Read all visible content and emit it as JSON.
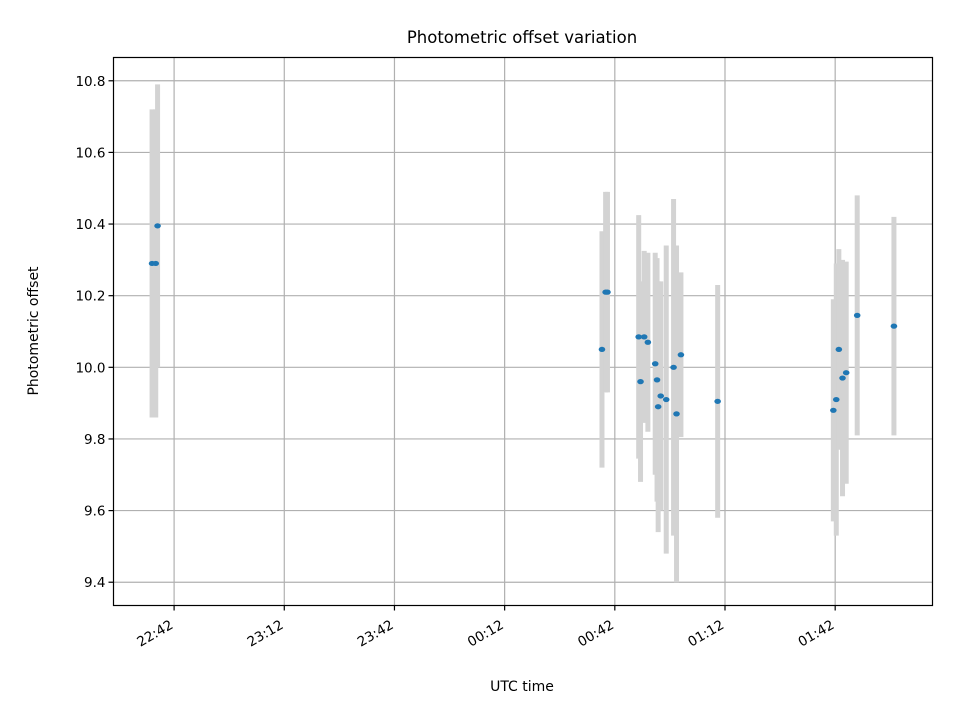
{
  "chart_data": {
    "type": "scatter",
    "title": "Photometric offset variation",
    "xlabel": "UTC time",
    "ylabel": "Photometric offset",
    "x_ticks": [
      "22:42",
      "23:12",
      "23:42",
      "00:12",
      "00:42",
      "01:12",
      "01:42"
    ],
    "y_ticks": [
      "9.4",
      "9.6",
      "9.8",
      "10.0",
      "10.2",
      "10.4",
      "10.6",
      "10.8"
    ],
    "xlim": [
      "22:25.5",
      "02:08.5"
    ],
    "ylim": [
      9.335,
      10.865
    ],
    "grid": true,
    "colors": {
      "marker": "#1f77b4",
      "errorbar": "#d3d3d3",
      "grid": "#b0b0b0"
    },
    "points": [
      {
        "t": "22:36.0",
        "y": 10.29,
        "err": 0.43
      },
      {
        "t": "22:37.0",
        "y": 10.29,
        "err": 0.43
      },
      {
        "t": "22:37.5",
        "y": 10.395,
        "err": 0.395
      },
      {
        "t": "00:38.5",
        "y": 10.05,
        "err": 0.33
      },
      {
        "t": "00:39.5",
        "y": 10.21,
        "err": 0.28
      },
      {
        "t": "00:40.0",
        "y": 10.21,
        "err": 0.28
      },
      {
        "t": "00:48.5",
        "y": 10.085,
        "err": 0.34
      },
      {
        "t": "00:49.0",
        "y": 9.96,
        "err": 0.28
      },
      {
        "t": "00:50.0",
        "y": 10.085,
        "err": 0.24
      },
      {
        "t": "00:51.0",
        "y": 10.07,
        "err": 0.25
      },
      {
        "t": "00:53.0",
        "y": 10.01,
        "err": 0.31
      },
      {
        "t": "00:53.5",
        "y": 9.965,
        "err": 0.34
      },
      {
        "t": "00:53.8",
        "y": 9.89,
        "err": 0.35
      },
      {
        "t": "00:54.5",
        "y": 9.92,
        "err": 0.32
      },
      {
        "t": "00:56.0",
        "y": 9.91,
        "err": 0.43
      },
      {
        "t": "00:58.0",
        "y": 10.0,
        "err": 0.47
      },
      {
        "t": "00:58.8",
        "y": 9.87,
        "err": 0.47
      },
      {
        "t": "01:00.0",
        "y": 10.035,
        "err": 0.23
      },
      {
        "t": "01:10.0",
        "y": 9.905,
        "err": 0.325
      },
      {
        "t": "01:41.5",
        "y": 9.88,
        "err": 0.31
      },
      {
        "t": "01:42.3",
        "y": 9.91,
        "err": 0.38
      },
      {
        "t": "01:43.0",
        "y": 10.05,
        "err": 0.28
      },
      {
        "t": "01:44.0",
        "y": 9.97,
        "err": 0.33
      },
      {
        "t": "01:45.0",
        "y": 9.985,
        "err": 0.31
      },
      {
        "t": "01:48.0",
        "y": 10.145,
        "err": 0.335
      },
      {
        "t": "01:58.0",
        "y": 10.115,
        "err": 0.305
      }
    ]
  }
}
